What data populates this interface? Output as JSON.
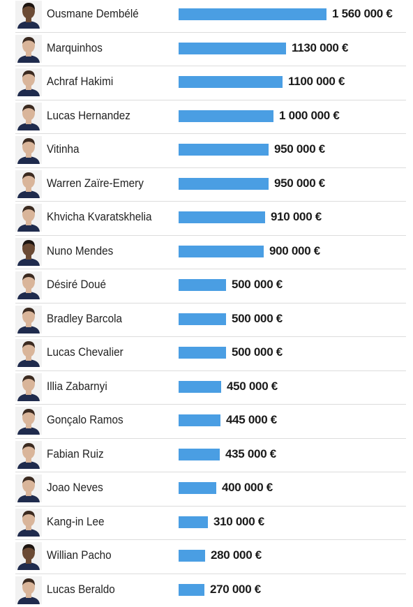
{
  "chart_data": {
    "type": "bar",
    "orientation": "horizontal",
    "categories": [
      "Ousmane Dembélé",
      "Marquinhos",
      "Achraf Hakimi",
      "Lucas Hernandez",
      "Vitinha",
      "Warren Zaïre-Emery",
      "Khvicha Kvaratskhelia",
      "Nuno Mendes",
      "Désiré Doué",
      "Bradley Barcola",
      "Lucas Chevalier",
      "Illia Zabarnyi",
      "Gonçalo Ramos",
      "Fabian Ruiz",
      "Joao Neves",
      "Kang-in Lee",
      "Willian Pacho",
      "Lucas Beraldo"
    ],
    "values": [
      1560000,
      1130000,
      1100000,
      1000000,
      950000,
      950000,
      910000,
      900000,
      500000,
      500000,
      500000,
      450000,
      445000,
      435000,
      400000,
      310000,
      280000,
      270000
    ],
    "value_labels": [
      "1 560 000 €",
      "1130 000 €",
      "1100 000 €",
      "1 000 000 €",
      "950 000 €",
      "950 000 €",
      "910 000 €",
      "900 000 €",
      "500 000 €",
      "500 000 €",
      "500 000 €",
      "450 000 €",
      "445 000 €",
      "435 000 €",
      "400 000 €",
      "310 000 €",
      "280 000 €",
      "270 000 €"
    ],
    "bar_color": "#4a9ee3",
    "grid": false,
    "legend": "none"
  },
  "icons": {
    "avatar": "player-portrait-icon"
  }
}
